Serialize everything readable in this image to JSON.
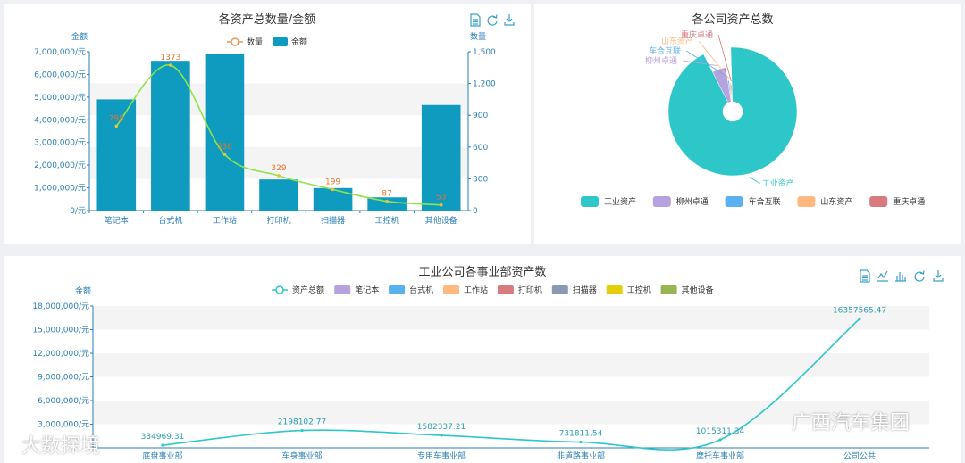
{
  "chart_data": [
    {
      "type": "bar",
      "title": "各资产总数量/金额",
      "categories": [
        "笔记本",
        "台式机",
        "工作站",
        "打印机",
        "扫描器",
        "工控机",
        "其他设备"
      ],
      "ylabel": "金额",
      "ylabel_right": "数量",
      "y_ticks": [
        "0/元",
        "1,000,000/元",
        "2,000,000/元",
        "3,000,000/元",
        "4,000,000/元",
        "5,000,000/元",
        "6,000,000/元",
        "7,000,000/元"
      ],
      "y_right_ticks": [
        "0",
        "300",
        "600",
        "900",
        "1,200",
        "1,500"
      ],
      "ylim": [
        0,
        7000000
      ],
      "ylim_right": [
        0,
        1500
      ],
      "legend_position": "top",
      "series": [
        {
          "name": "数量",
          "type": "line",
          "axis": "right",
          "color": "#e89a5b",
          "values": [
            798,
            1373,
            530,
            329,
            199,
            87,
            53
          ]
        },
        {
          "name": "金额",
          "type": "bar",
          "axis": "left",
          "color": "#0e9bbf",
          "values": [
            4900000,
            6600000,
            6900000,
            1370000,
            990000,
            580000,
            4650000
          ]
        }
      ]
    },
    {
      "type": "pie",
      "title": "各公司资产总数",
      "legend_position": "bottom",
      "labels": [
        "工业资产",
        "柳州卓通",
        "车合互联",
        "山东资产",
        "重庆卓通"
      ],
      "values": [
        0.93,
        0.05,
        0.007,
        0.007,
        0.006
      ],
      "colors": [
        "#2ec7c9",
        "#b6a2de",
        "#5ab1ef",
        "#ffb980",
        "#d87a80"
      ]
    },
    {
      "type": "line",
      "title": "工业公司各事业部资产数",
      "categories": [
        "底盘事业部",
        "车身事业部",
        "专用车事业部",
        "非道路事业部",
        "摩托车事业部",
        "公司公共"
      ],
      "ylabel": "金额",
      "y_ticks": [
        "3,000,000/元",
        "6,000,000/元",
        "9,000,000/元",
        "12,000,000/元",
        "15,000,000/元",
        "18,000,000/元"
      ],
      "ylim": [
        0,
        18000000
      ],
      "legend_position": "top",
      "legend": [
        {
          "name": "资产总额",
          "color": "#2ec7c9",
          "line": true
        },
        {
          "name": "笔记本",
          "color": "#b6a2de"
        },
        {
          "name": "台式机",
          "color": "#5ab1ef"
        },
        {
          "name": "工作站",
          "color": "#ffb980"
        },
        {
          "name": "打印机",
          "color": "#d87a80"
        },
        {
          "name": "扫描器",
          "color": "#8d98b3"
        },
        {
          "name": "工控机",
          "color": "#e5cf0d"
        },
        {
          "name": "其他设备",
          "color": "#97b552"
        }
      ],
      "series": [
        {
          "name": "资产总额",
          "color": "#2ec7c9",
          "values": [
            334969.31,
            2198102.77,
            1582337.21,
            731811.54,
            1015311.34,
            16357565.47
          ],
          "labels": [
            "334969.31",
            "2198102.77",
            "1582337.21",
            "731811.54",
            "1015311.34",
            "16357565.47"
          ]
        }
      ]
    }
  ],
  "watermarks": {
    "left": "大数探境",
    "right": "广西汽车集团"
  },
  "icons": [
    "data-view-icon",
    "refresh-icon",
    "save-image-icon",
    "line-type-icon",
    "bar-type-icon"
  ]
}
